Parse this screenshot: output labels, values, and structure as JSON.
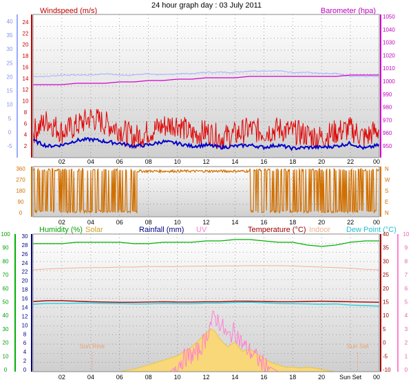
{
  "title": "24 hour graph day : 03 July 2011",
  "colors": {
    "wind": "#e00000",
    "gust_dark": "#0000c8",
    "wind_direction": "#d07000",
    "barometer": "#d000d0",
    "wind_left_axis": "#9aa8ff",
    "baro_avg": "#b0b8ff",
    "humidity": "#00b000",
    "solar": "#e8c030",
    "rainfall": "#000080",
    "uv": "#ff80d0",
    "temperature": "#a00000",
    "indoor": "#f0b090",
    "dew_point": "#20d0e0",
    "grid": "#7a7a7a",
    "bg_top": "#ffffff",
    "bg_bottom": "#cfcfcf"
  },
  "chart_data": [
    {
      "type": "line",
      "name": "wind-baro",
      "series_labels": {
        "wind": "Windspeed (m/s)",
        "barometer": "Barometer (hpa)"
      },
      "x_ticks": [
        "02",
        "04",
        "06",
        "08",
        "10",
        "12",
        "14",
        "16",
        "18",
        "20",
        "22",
        "00"
      ],
      "left_outer_ticks": [
        "40",
        "35",
        "30",
        "25",
        "20",
        "15",
        "10",
        "5",
        "0",
        "-5"
      ],
      "left_inner_ticks": [
        "24",
        "22",
        "20",
        "18",
        "16",
        "14",
        "12",
        "10",
        "8",
        "6",
        "4",
        "2"
      ],
      "right_ticks": [
        "1050",
        "1040",
        "1030",
        "1020",
        "1010",
        "1000",
        "990",
        "980",
        "970",
        "960",
        "950"
      ],
      "ylim_wind": [
        0,
        25
      ],
      "ylim_baro": [
        948,
        1052
      ],
      "x_hours": [
        0,
        1,
        2,
        3,
        4,
        5,
        6,
        7,
        8,
        9,
        10,
        11,
        12,
        13,
        14,
        15,
        16,
        17,
        18,
        19,
        20,
        21,
        22,
        23,
        24
      ],
      "wind_mean": [
        4.5,
        6.5,
        4.5,
        5.5,
        7.0,
        6.0,
        5.0,
        3.5,
        4.5,
        5.5,
        6.0,
        4.0,
        4.5,
        3.5,
        4.0,
        5.0,
        4.5,
        5.0,
        4.5,
        4.0,
        3.5,
        4.5,
        5.0,
        3.5,
        5.0
      ],
      "wind_avg_dark": [
        3.0,
        2.0,
        2.2,
        3.0,
        3.2,
        2.8,
        2.5,
        2.0,
        2.2,
        2.8,
        2.5,
        2.0,
        2.2,
        1.8,
        2.0,
        2.2,
        1.8,
        2.2,
        1.6,
        1.8,
        1.8,
        2.0,
        2.5,
        1.6,
        2.2
      ],
      "barometer": [
        1001,
        1001,
        1001,
        1002,
        1002,
        1002,
        1003,
        1003,
        1004,
        1004,
        1005,
        1005,
        1006,
        1006,
        1006,
        1007,
        1007,
        1007,
        1007,
        1007,
        1007,
        1007,
        1008,
        1008,
        1008
      ],
      "baro_avg": [
        1007,
        1007,
        1008,
        1008,
        1008,
        1009,
        1008,
        1008,
        1009,
        1008,
        1009,
        1009,
        1010,
        1010,
        1010,
        1011,
        1011,
        1011,
        1010,
        1010,
        1009,
        1009,
        1007,
        1007,
        1007
      ]
    },
    {
      "type": "line",
      "name": "wind-direction",
      "x_ticks": [
        "02",
        "04",
        "06",
        "08",
        "10",
        "12",
        "14",
        "16",
        "18",
        "20",
        "22",
        "00"
      ],
      "left_ticks": [
        "360",
        "270",
        "180",
        "90",
        "0"
      ],
      "right_ticks": [
        "N",
        "W",
        "S",
        "E",
        "N"
      ],
      "ylim": [
        0,
        360
      ],
      "segments": [
        {
          "start": 0.0,
          "end": 7.2,
          "low": 10,
          "high": 360,
          "mode": "dense"
        },
        {
          "start": 7.2,
          "end": 12.0,
          "low": 330,
          "high": 350,
          "mode": "flat"
        },
        {
          "start": 12.0,
          "end": 15.0,
          "low": 330,
          "high": 350,
          "mode": "flat"
        },
        {
          "start": 15.0,
          "end": 21.5,
          "low": 10,
          "high": 360,
          "mode": "dense"
        },
        {
          "start": 21.5,
          "end": 24.0,
          "low": 10,
          "high": 360,
          "mode": "dense"
        }
      ]
    },
    {
      "type": "line",
      "name": "temp-humidity-solar",
      "series_labels": {
        "humidity": "Humidity (%)",
        "solar": "Solar",
        "rainfall": "Rainfall (mm)",
        "uv": "UV",
        "temperature": "Temperature (°C)",
        "indoor": "Indoor",
        "dew_point": "Dew Point (°C)"
      },
      "x_ticks": [
        "02",
        "04",
        "06",
        "08",
        "10",
        "12",
        "14",
        "16",
        "18",
        "20",
        "Sun Set",
        "00"
      ],
      "humidity_ticks": [
        "100",
        "90",
        "80",
        "70",
        "60",
        "50",
        "40",
        "30",
        "20",
        "10",
        "0"
      ],
      "rain_ticks": [
        "30",
        "28",
        "26",
        "24",
        "22",
        "20",
        "18",
        "16",
        "14",
        "12",
        "10",
        "8",
        "6",
        "4",
        "2",
        "0"
      ],
      "temp_ticks": [
        "40",
        "35",
        "30",
        "25",
        "20",
        "15",
        "10",
        "5",
        "0",
        "-5",
        "-10"
      ],
      "uv_ticks": [
        "10",
        "9",
        "8",
        "7",
        "6",
        "5",
        "4",
        "3",
        "2",
        "1",
        "0"
      ],
      "annotations": [
        "Sun Rise",
        "Sun Set"
      ],
      "sunrise_hour": 4.1,
      "sunset_hour": 22.5,
      "x_hours": [
        0,
        1,
        2,
        3,
        4,
        5,
        6,
        7,
        8,
        9,
        10,
        11,
        12,
        13,
        14,
        15,
        16,
        17,
        18,
        19,
        20,
        21,
        22,
        23,
        24
      ],
      "humidity": [
        93,
        93,
        93,
        94,
        94,
        94,
        94,
        93,
        93,
        94,
        94,
        94,
        95,
        95,
        96,
        96,
        95,
        94,
        94,
        92,
        91,
        92,
        94,
        95,
        95
      ],
      "temperature": [
        15.5,
        15.8,
        15.8,
        15.6,
        15.4,
        15.3,
        15.2,
        15.2,
        15.3,
        15.4,
        15.3,
        15.3,
        15.4,
        15.4,
        15.6,
        15.6,
        15.5,
        15.4,
        15.4,
        15.5,
        15.6,
        15.5,
        15.4,
        15.3,
        15.2
      ],
      "indoor": [
        27.0,
        27.3,
        27.5,
        27.7,
        27.8,
        27.8,
        28.0,
        28.0,
        28.2,
        28.2,
        28.2,
        28.3,
        28.3,
        28.4,
        28.4,
        28.5,
        28.5,
        28.5,
        28.4,
        28.2,
        28.0,
        27.8,
        27.6,
        27.2,
        27.0
      ],
      "dew_point": [
        14.5,
        14.8,
        14.8,
        14.9,
        14.9,
        14.8,
        14.7,
        14.6,
        14.6,
        14.8,
        14.7,
        14.7,
        14.9,
        14.9,
        15.1,
        15.2,
        15.0,
        14.8,
        14.7,
        14.6,
        14.5,
        14.6,
        14.2,
        14.0,
        13.8
      ],
      "solar_hours": [
        6.0,
        6.5,
        7.0,
        7.5,
        8.0,
        8.5,
        9.0,
        9.5,
        10.0,
        10.5,
        11.0,
        11.5,
        12.0,
        12.3,
        12.6,
        13.0,
        13.5,
        14.0,
        14.5,
        15.0,
        15.5,
        16.0,
        16.5,
        17.0,
        17.5,
        18.0,
        18.5,
        19.0,
        19.5,
        20.0,
        20.5,
        21.0
      ],
      "solar_rain_units": [
        0,
        0.3,
        0.6,
        1.0,
        1.5,
        2.0,
        2.5,
        3.0,
        3.5,
        4.5,
        5.5,
        7.0,
        8.5,
        9.5,
        9.0,
        7.0,
        5.5,
        6.5,
        4.5,
        5.0,
        4.0,
        3.0,
        2.0,
        1.5,
        1.0,
        1.0,
        0.8,
        1.0,
        0.8,
        0.5,
        0.2,
        0
      ],
      "uv": [
        0,
        0,
        0,
        0,
        0,
        0,
        0,
        0,
        0.5,
        1.0,
        1.2,
        1.5,
        2.5,
        3.5,
        4.0,
        3.5,
        2.5,
        3.0,
        2.0,
        1.5,
        1.0,
        0.5,
        0.3,
        0,
        0,
        0,
        0,
        0,
        0,
        0,
        0,
        0
      ]
    }
  ]
}
